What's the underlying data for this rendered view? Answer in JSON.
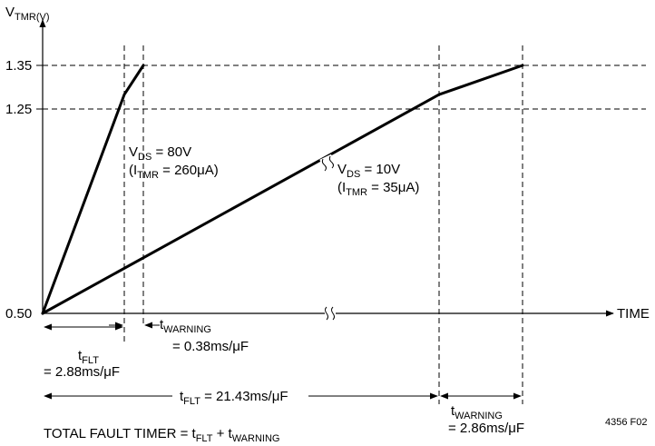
{
  "chart_data": {
    "type": "line",
    "y_axis": {
      "label_main": "V",
      "label_sub": "TMR(V)",
      "ticks": [
        "1.35",
        "1.25",
        "0.50"
      ],
      "ylim": [
        0.5,
        1.35
      ]
    },
    "x_axis": {
      "label": "TIME"
    },
    "series": [
      {
        "label_main": "V",
        "label_sub": "DS",
        "label_rest": " = 80V",
        "current_prefix": "(I",
        "current_sub": "TMR",
        "current_rest": " = 260μA)",
        "points": [
          [
            0,
            0.5
          ],
          [
            2.88,
            1.25
          ],
          [
            3.26,
            1.35
          ]
        ]
      },
      {
        "label_main": "V",
        "label_sub": "DS",
        "label_rest": " = 10V",
        "current_prefix": "(I",
        "current_sub": "TMR",
        "current_rest": " = 35μA)",
        "points": [
          [
            0,
            0.5
          ],
          [
            21.43,
            1.25
          ],
          [
            24.29,
            1.35
          ]
        ]
      }
    ],
    "annotations": {
      "tflt_short": {
        "main": "t",
        "sub": "FLT",
        "value": "= 2.88ms/μF"
      },
      "twarn_short": {
        "main": "t",
        "sub": "WARNING",
        "value": "= 0.38ms/μF"
      },
      "tflt_long": {
        "main": "t",
        "sub": "FLT",
        "value": " = 21.43ms/μF"
      },
      "twarn_long": {
        "main": "t",
        "sub": "WARNING",
        "value": "= 2.86ms/μF"
      },
      "total": {
        "text": "TOTAL FAULT TIMER = t",
        "sub1": "FLT",
        "mid": " + t",
        "sub2": "WARNING"
      }
    },
    "figure_code": "4356 F02"
  }
}
